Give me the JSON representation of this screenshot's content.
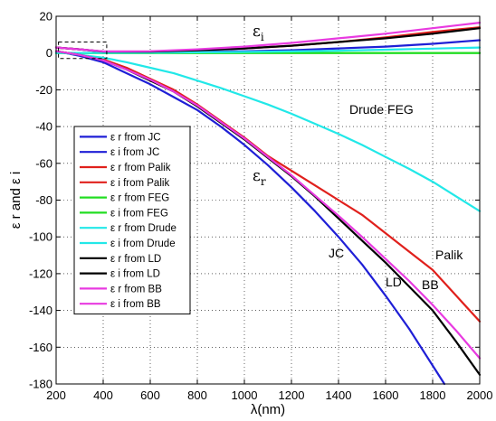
{
  "chart_data": {
    "type": "line",
    "xlabel": "λ(nm)",
    "ylabel": "ε r and ε i",
    "xlim": [
      200,
      2000
    ],
    "ylim": [
      -180,
      20
    ],
    "xticks": [
      "200",
      "400",
      "600",
      "800",
      "1000",
      "1200",
      "1400",
      "1600",
      "1800",
      "2000"
    ],
    "yticks": [
      "20",
      "0",
      "-20",
      "-40",
      "-60",
      "-80",
      "-100",
      "-120",
      "-140",
      "-160",
      "-180"
    ],
    "grid": true,
    "legend_position": "left",
    "series": [
      {
        "name": "ε r from JC",
        "color": "#1f1fd6",
        "x": [
          200,
          300,
          400,
          500,
          600,
          700,
          800,
          900,
          1000,
          1100,
          1200,
          1300,
          1400,
          1500,
          1600,
          1700,
          1800,
          1850
        ],
        "y": [
          1.0,
          -1.5,
          -5.0,
          -11.0,
          -17.0,
          -24.0,
          -31.0,
          -40.0,
          -50.0,
          -61.0,
          -73.0,
          -86.0,
          -100.0,
          -115.0,
          -132.0,
          -150.0,
          -170.0,
          -180.0
        ]
      },
      {
        "name": "ε i from JC",
        "color": "#1f1fd6",
        "x": [
          200,
          300,
          400,
          600,
          800,
          1000,
          1200,
          1400,
          1600,
          1800,
          2000
        ],
        "y": [
          3.0,
          2.0,
          0.8,
          0.5,
          0.7,
          1.0,
          1.5,
          2.5,
          3.5,
          5.0,
          7.0
        ]
      },
      {
        "name": "ε r from Palik",
        "color": "#e0201c",
        "x": [
          200,
          300,
          400,
          500,
          600,
          700,
          800,
          900,
          1000,
          1100,
          1200,
          1300,
          1400,
          1500,
          1600,
          1700,
          1800,
          1900,
          2000
        ],
        "y": [
          1.0,
          -1.0,
          -3.5,
          -8.0,
          -14.0,
          -20.0,
          -28.0,
          -37.0,
          -46.0,
          -56.0,
          -64.0,
          -72.0,
          -80.0,
          -88.0,
          -98.0,
          -108.0,
          -118.0,
          -132.0,
          -146.0
        ]
      },
      {
        "name": "ε i from Palik",
        "color": "#e0201c",
        "x": [
          200,
          300,
          400,
          600,
          800,
          1000,
          1200,
          1400,
          1600,
          1800,
          2000
        ],
        "y": [
          3.0,
          2.0,
          0.8,
          0.8,
          1.5,
          2.5,
          4.0,
          6.0,
          8.5,
          11.5,
          14.0
        ]
      },
      {
        "name": "ε r from FEG",
        "color": "#22dd22",
        "x": [
          200,
          2000
        ],
        "y": [
          0.0,
          0.0
        ]
      },
      {
        "name": "ε i from FEG",
        "color": "#22dd22",
        "x": [
          200,
          2000
        ],
        "y": [
          0.0,
          0.0
        ]
      },
      {
        "name": "ε r from Drude",
        "color": "#22e8e8",
        "x": [
          200,
          300,
          400,
          500,
          600,
          700,
          800,
          900,
          1000,
          1100,
          1200,
          1300,
          1400,
          1500,
          1600,
          1700,
          1800,
          1900,
          2000
        ],
        "y": [
          0.5,
          -1.0,
          -2.5,
          -5.0,
          -8.0,
          -11.0,
          -15.0,
          -19.0,
          -23.5,
          -28.0,
          -33.0,
          -38.5,
          -44.0,
          -50.0,
          -56.5,
          -63.0,
          -70.0,
          -78.0,
          -86.0
        ]
      },
      {
        "name": "ε i from Drude",
        "color": "#22e8e8",
        "x": [
          200,
          400,
          600,
          800,
          1000,
          1200,
          1400,
          1600,
          1800,
          2000
        ],
        "y": [
          0.0,
          0.1,
          0.2,
          0.4,
          0.6,
          0.9,
          1.3,
          1.8,
          2.4,
          3.0
        ]
      },
      {
        "name": "ε r from LD",
        "color": "#000000",
        "x": [
          200,
          300,
          400,
          500,
          600,
          700,
          800,
          900,
          1000,
          1100,
          1200,
          1300,
          1400,
          1500,
          1600,
          1700,
          1800,
          1900,
          2000
        ],
        "y": [
          1.0,
          -1.0,
          -4.0,
          -9.0,
          -15.0,
          -21.0,
          -29.0,
          -38.0,
          -47.0,
          -57.0,
          -67.0,
          -78.0,
          -90.0,
          -102.0,
          -114.0,
          -127.0,
          -140.0,
          -157.0,
          -175.0
        ]
      },
      {
        "name": "ε i from LD",
        "color": "#000000",
        "x": [
          200,
          300,
          400,
          600,
          800,
          1000,
          1200,
          1400,
          1600,
          1800,
          2000
        ],
        "y": [
          3.0,
          2.0,
          0.8,
          0.8,
          1.5,
          2.5,
          4.0,
          6.0,
          8.0,
          10.5,
          13.5
        ]
      },
      {
        "name": "ε r from BB",
        "color": "#e83ae0",
        "x": [
          200,
          300,
          400,
          500,
          600,
          700,
          800,
          900,
          1000,
          1100,
          1200,
          1300,
          1400,
          1500,
          1600,
          1700,
          1800,
          1900,
          2000
        ],
        "y": [
          1.0,
          -1.0,
          -4.0,
          -9.0,
          -14.5,
          -21.0,
          -28.5,
          -37.5,
          -46.5,
          -56.5,
          -66.5,
          -77.5,
          -88.5,
          -100.0,
          -112.0,
          -124.0,
          -137.0,
          -151.0,
          -166.0
        ]
      },
      {
        "name": "ε i from BB",
        "color": "#e83ae0",
        "x": [
          200,
          300,
          400,
          600,
          800,
          1000,
          1200,
          1400,
          1600,
          1800,
          2000
        ],
        "y": [
          3.0,
          2.0,
          0.9,
          1.0,
          2.0,
          3.5,
          5.5,
          8.0,
          10.5,
          13.5,
          16.5
        ]
      }
    ],
    "annotations": {
      "eps_i": {
        "main": "ε",
        "sub": "i"
      },
      "eps_r": {
        "main": "ε",
        "sub": "r"
      },
      "drude_feg": "Drude FEG",
      "jc": "JC",
      "ld": "LD",
      "bb": "BB",
      "palik": "Palik"
    },
    "inset_box": {
      "x": [
        210,
        415
      ],
      "y": [
        -3,
        6
      ]
    }
  }
}
